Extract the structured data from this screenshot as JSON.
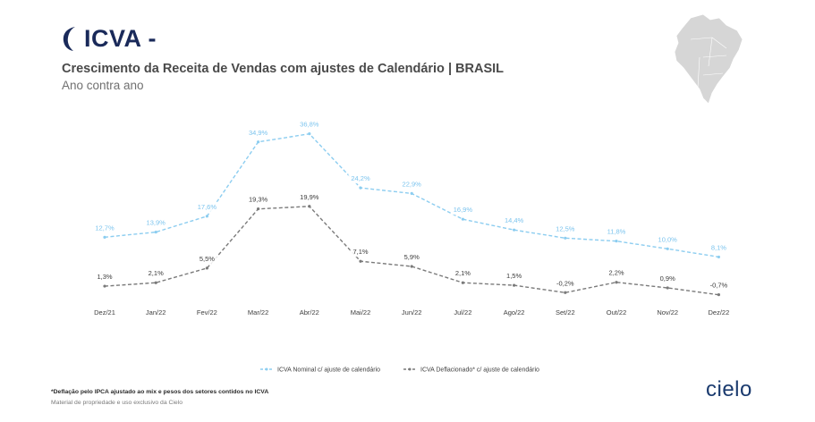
{
  "header": {
    "logo_text": "ICVA -",
    "title": "Crescimento da Receita de Vendas com ajustes de Calendário | BRASIL",
    "subtitle": "Ano contra ano"
  },
  "chart_data": {
    "type": "line",
    "categories": [
      "Dez/21",
      "Jan/22",
      "Fev/22",
      "Mar/22",
      "Abr/22",
      "Mai/22",
      "Jun/22",
      "Jul/22",
      "Ago/22",
      "Set/22",
      "Out/22",
      "Nov/22",
      "Dez/22"
    ],
    "series": [
      {
        "name": "ICVA Nominal c/ ajuste de calendário",
        "color": "#8ccdf0",
        "values": [
          12.7,
          13.9,
          17.6,
          34.9,
          36.8,
          24.2,
          22.9,
          16.9,
          14.4,
          12.5,
          11.8,
          10.0,
          8.1
        ],
        "labels": [
          "12,7%",
          "13,9%",
          "17,6%",
          "34,9%",
          "36,8%",
          "24,2%",
          "22,9%",
          "16,9%",
          "14,4%",
          "12,5%",
          "11,8%",
          "10,0%",
          "8,1%"
        ]
      },
      {
        "name": "ICVA Deflacionado* c/ ajuste de calendário",
        "color": "#7a7a7a",
        "values": [
          1.3,
          2.1,
          5.5,
          19.3,
          19.9,
          7.1,
          5.9,
          2.1,
          1.5,
          -0.2,
          2.2,
          0.9,
          -0.7
        ],
        "labels": [
          "1,3%",
          "2,1%",
          "5,5%",
          "19,3%",
          "19,9%",
          "7,1%",
          "5,9%",
          "2,1%",
          "1,5%",
          "-0,2%",
          "2,2%",
          "0,9%",
          "-0,7%"
        ]
      }
    ],
    "legend_position": "bottom-center",
    "grid": false
  },
  "footer": {
    "footnote": "*Deflação pelo IPCA ajustado ao mix e pesos dos setores contidos no ICVA",
    "ownership": "Material de propriedade e uso exclusivo da Cielo",
    "brand": "cielo"
  }
}
